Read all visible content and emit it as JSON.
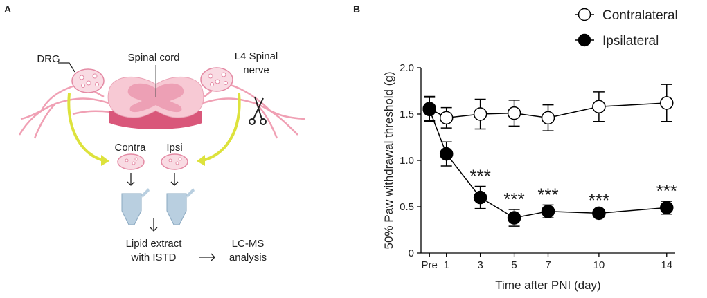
{
  "panel_a": {
    "label": "A",
    "drg": "DRG",
    "spinal_cord": "Spinal cord",
    "nerve": [
      "L4 Spinal",
      "nerve"
    ],
    "contra": "Contra",
    "ipsi": "Ipsi",
    "extract": [
      "Lipid extract",
      "with ISTD"
    ],
    "analysis": [
      "LC-MS",
      "analysis"
    ]
  },
  "chart_data": {
    "type": "line",
    "panel_label": "B",
    "x_label": "Time after PNI (day)",
    "y_label": "50% Paw withdrawal threshold (g)",
    "x": [
      0,
      1,
      3,
      5,
      7,
      10,
      14
    ],
    "xlim": [
      -0.5,
      14.5
    ],
    "xticks": [
      {
        "value": 0,
        "label": "Pre"
      },
      1,
      3,
      5,
      7,
      10,
      14
    ],
    "ylim": [
      0,
      2
    ],
    "yticks": [
      0,
      0.5,
      {
        "value": 1,
        "label": "1.0"
      },
      1.5,
      {
        "value": 2,
        "label": "2.0"
      }
    ],
    "series": [
      {
        "name": "Contralateral",
        "color": "#000000",
        "fill": "#ffffff",
        "values": [
          1.56,
          1.46,
          1.5,
          1.51,
          1.46,
          1.58,
          1.62
        ],
        "errors": [
          0.13,
          0.11,
          0.16,
          0.14,
          0.14,
          0.16,
          0.2
        ]
      },
      {
        "name": "Ipsilateral",
        "color": "#000000",
        "fill": "#000000",
        "values": [
          1.55,
          1.07,
          0.6,
          0.38,
          0.45,
          0.43,
          0.49
        ],
        "errors": [
          0.13,
          0.13,
          0.12,
          0.09,
          0.07,
          0.03,
          0.07
        ]
      }
    ],
    "annotations": [
      {
        "x": 3,
        "text": "***"
      },
      {
        "x": 5,
        "text": "***"
      },
      {
        "x": 7,
        "text": "***"
      },
      {
        "x": 10,
        "text": "***"
      },
      {
        "x": 14,
        "text": "***"
      }
    ],
    "legend": "upper right"
  }
}
